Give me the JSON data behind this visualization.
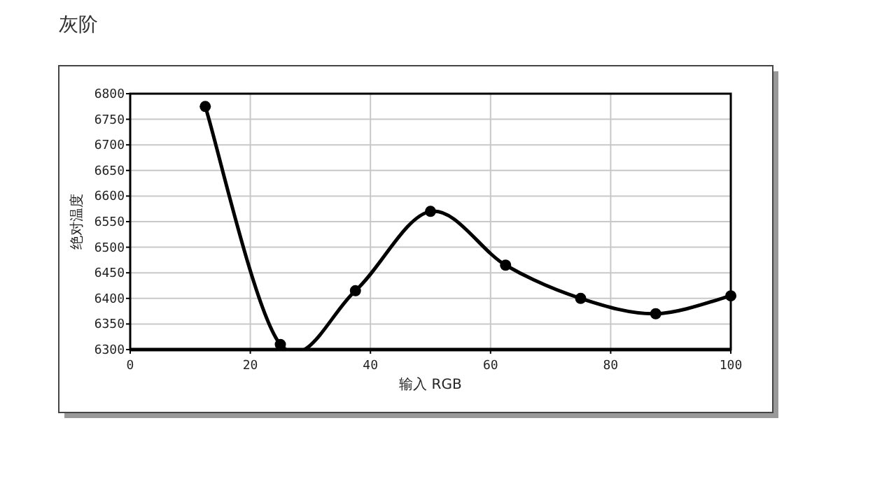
{
  "chart_data": {
    "type": "line",
    "title": "灰阶",
    "xlabel": "输入 RGB",
    "ylabel": "绝对温度",
    "x": [
      12.5,
      25,
      37.5,
      50,
      62.5,
      75,
      87.5,
      100
    ],
    "series": [
      {
        "color": "#000000",
        "values": [
          6775,
          6310,
          6415,
          6570,
          6465,
          6400,
          6370,
          6405
        ]
      }
    ],
    "xlim": [
      0,
      100
    ],
    "xticks": [
      0,
      20,
      40,
      60,
      80,
      100
    ],
    "ylim": [
      6300,
      6800
    ],
    "yticks": [
      6300,
      6350,
      6400,
      6450,
      6500,
      6550,
      6600,
      6650,
      6700,
      6750,
      6800
    ],
    "grid": true,
    "marker": "circle",
    "line_style": "solid"
  }
}
